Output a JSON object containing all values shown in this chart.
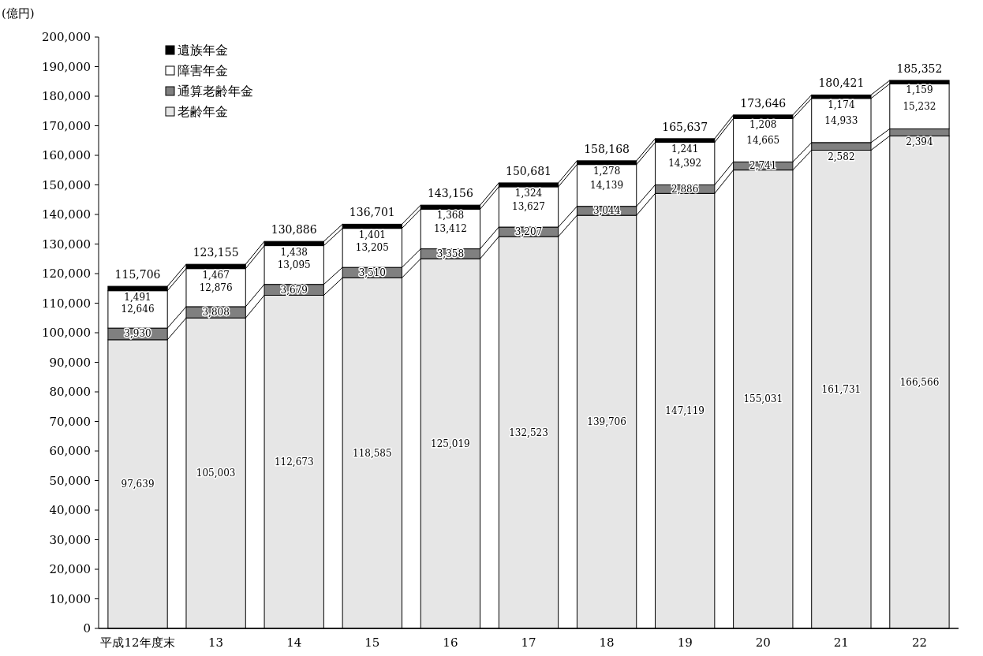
{
  "chart_data": {
    "type": "bar",
    "stacked": true,
    "ylabel": "(億円)",
    "legend": "top left",
    "categories": [
      "平成12年度末",
      "13",
      "14",
      "15",
      "16",
      "17",
      "18",
      "19",
      "20",
      "21",
      "22"
    ],
    "ylim": [
      0,
      200000
    ],
    "yticks": [
      0,
      {
        "value": 10000,
        "label": "10,000"
      },
      {
        "value": 20000,
        "label": "20,000"
      },
      {
        "value": 30000,
        "label": "30,000"
      },
      {
        "value": 40000,
        "label": "40,000"
      },
      {
        "value": 50000,
        "label": "50,000"
      },
      {
        "value": 60000,
        "label": "60,000"
      },
      {
        "value": 70000,
        "label": "70,000"
      },
      {
        "value": 80000,
        "label": "80,000"
      },
      {
        "value": 90000,
        "label": "90,000"
      },
      {
        "value": 100000,
        "label": "100,000"
      },
      {
        "value": 110000,
        "label": "110,000"
      },
      {
        "value": 120000,
        "label": "120,000"
      },
      {
        "value": 130000,
        "label": "130,000"
      },
      {
        "value": 140000,
        "label": "140,000"
      },
      {
        "value": 150000,
        "label": "150,000"
      },
      {
        "value": 160000,
        "label": "160,000"
      },
      {
        "value": 170000,
        "label": "170,000"
      },
      {
        "value": 180000,
        "label": "180,000"
      },
      {
        "value": 190000,
        "label": "190,000"
      },
      {
        "value": 200000,
        "label": "200,000"
      }
    ],
    "series": [
      {
        "name": "老齢年金",
        "color": "#e6e6e6",
        "values": [
          97639,
          105003,
          112673,
          118585,
          125019,
          132523,
          139706,
          147119,
          155031,
          161731,
          166566
        ],
        "value_labels": [
          "97,639",
          "105,003",
          "112,673",
          "118,585",
          "125,019",
          "132,523",
          "139,706",
          "147,119",
          "155,031",
          "161,731",
          "166,566"
        ]
      },
      {
        "name": "通算老齢年金",
        "color": "#808080",
        "values": [
          3930,
          3808,
          3679,
          3510,
          3358,
          3207,
          3044,
          2886,
          2741,
          2582,
          2394
        ],
        "value_labels": [
          "3,930",
          "3,808",
          "3,679",
          "3,510",
          "3,358",
          "3,207",
          "3,044",
          "2,886",
          "2,741",
          "2,582",
          "2,394"
        ]
      },
      {
        "name": "障害年金",
        "color": "#ffffff",
        "values": [
          12646,
          12876,
          13095,
          13205,
          13412,
          13627,
          14139,
          14392,
          14665,
          14933,
          15232
        ],
        "value_labels": [
          "12,646",
          "12,876",
          "13,095",
          "13,205",
          "13,412",
          "13,627",
          "14,139",
          "14,392",
          "14,665",
          "14,933",
          "15,232"
        ]
      },
      {
        "name": "遺族年金",
        "color": "#000000",
        "values": [
          1491,
          1467,
          1438,
          1401,
          1368,
          1324,
          1278,
          1241,
          1208,
          1174,
          1159
        ],
        "value_labels": [
          "1,491",
          "1,467",
          "1,438",
          "1,401",
          "1,368",
          "1,324",
          "1,278",
          "1,241",
          "1,208",
          "1,174",
          "1,159"
        ]
      }
    ],
    "totals": [
      "115,706",
      "123,155",
      "130,886",
      "136,701",
      "143,156",
      "150,681",
      "158,168",
      "165,637",
      "173,646",
      "180,421",
      "185,352"
    ]
  }
}
